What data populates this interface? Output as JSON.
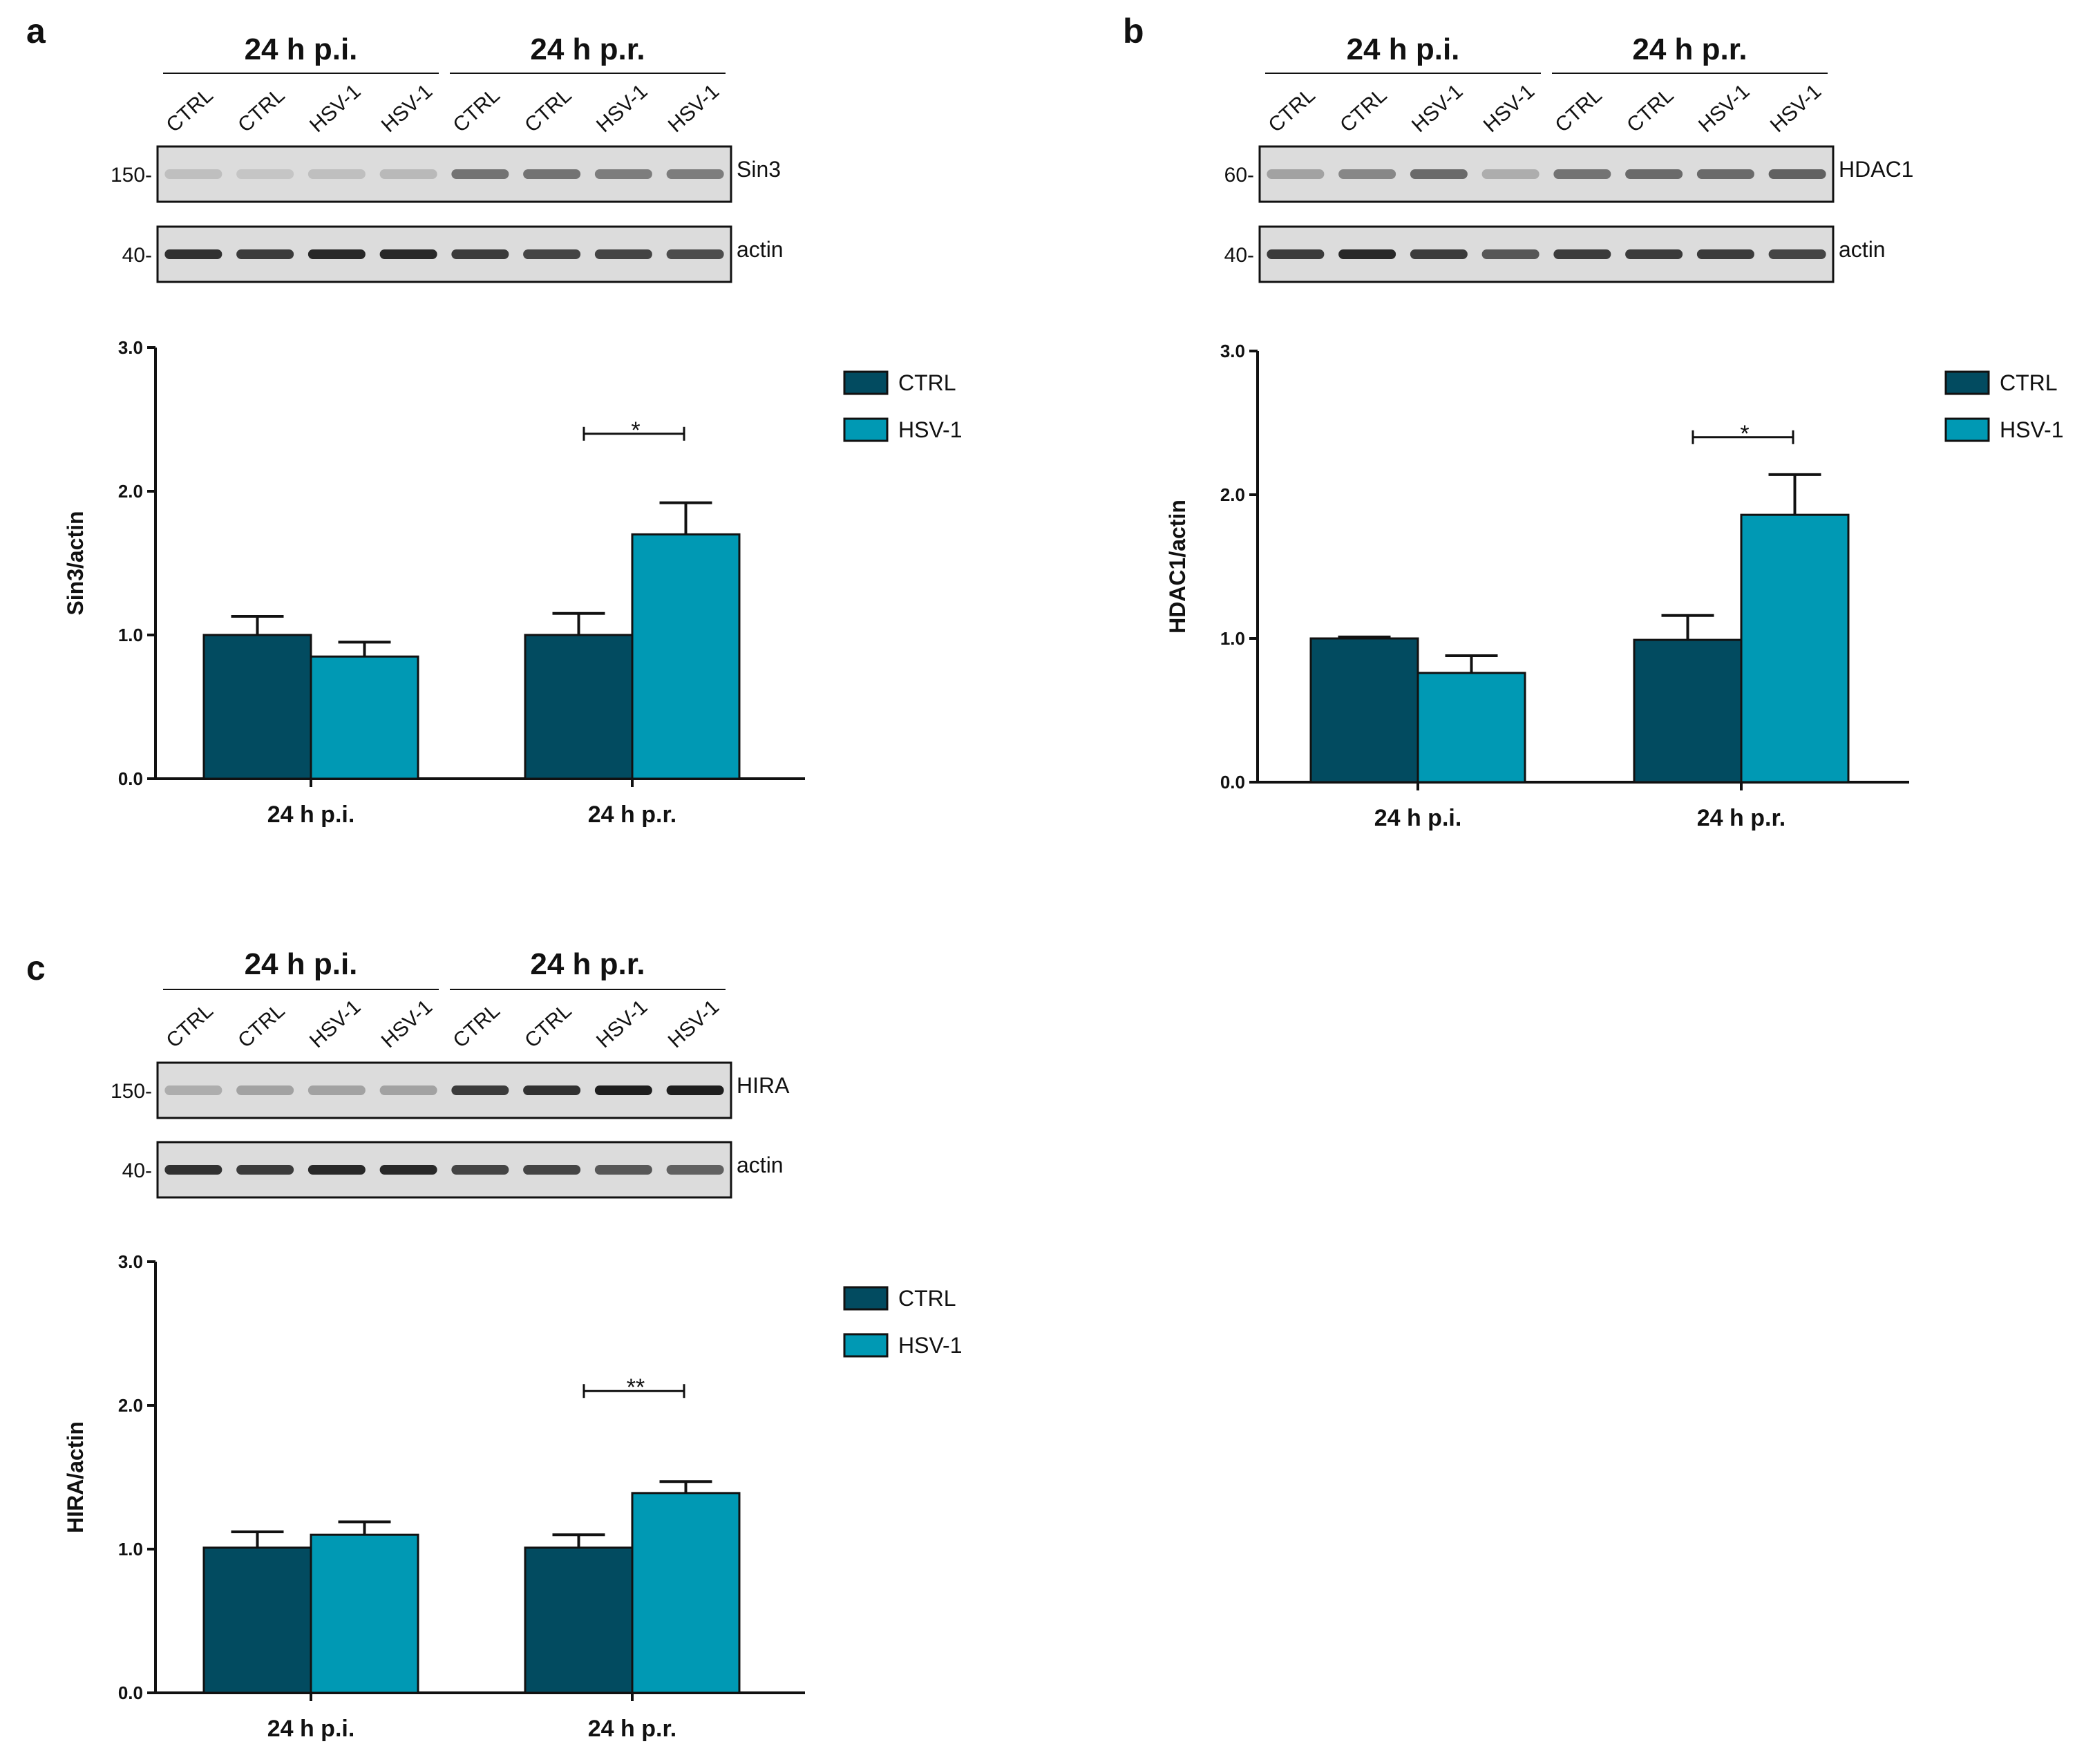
{
  "colors": {
    "ctrl": "#024B60",
    "hsv": "#0099B4",
    "blot_bg": "#dcdcdc",
    "band": "#1e1e1e"
  },
  "panels": [
    {
      "letter": "a",
      "groups": [
        "24 h p.i.",
        "24 h p.r."
      ],
      "lanes": [
        "CTRL",
        "CTRL",
        "HSV-1",
        "HSV-1",
        "CTRL",
        "CTRL",
        "HSV-1",
        "HSV-1"
      ],
      "blots": [
        {
          "protein": "Sin3",
          "mw": "150-",
          "intensities": [
            0.15,
            0.12,
            0.15,
            0.18,
            0.55,
            0.55,
            0.5,
            0.5
          ]
        },
        {
          "protein": "actin",
          "mw": "40-",
          "intensities": [
            0.9,
            0.85,
            0.95,
            0.95,
            0.85,
            0.8,
            0.8,
            0.75
          ]
        }
      ]
    },
    {
      "letter": "b",
      "groups": [
        "24 h p.i.",
        "24 h p.r."
      ],
      "lanes": [
        "CTRL",
        "CTRL",
        "HSV-1",
        "HSV-1",
        "CTRL",
        "CTRL",
        "HSV-1",
        "HSV-1"
      ],
      "blots": [
        {
          "protein": "HDAC1",
          "mw": "60-",
          "intensities": [
            0.3,
            0.45,
            0.6,
            0.25,
            0.55,
            0.6,
            0.6,
            0.65
          ]
        },
        {
          "protein": "actin",
          "mw": "40-",
          "intensities": [
            0.85,
            0.95,
            0.85,
            0.7,
            0.85,
            0.85,
            0.85,
            0.8
          ]
        }
      ]
    },
    {
      "letter": "c",
      "groups": [
        "24 h p.i.",
        "24 h p.r."
      ],
      "lanes": [
        "CTRL",
        "CTRL",
        "HSV-1",
        "HSV-1",
        "CTRL",
        "CTRL",
        "HSV-1",
        "HSV-1"
      ],
      "blots": [
        {
          "protein": "HIRA",
          "mw": "150-",
          "intensities": [
            0.25,
            0.3,
            0.3,
            0.3,
            0.85,
            0.9,
            1.0,
            1.0
          ]
        },
        {
          "protein": "actin",
          "mw": "40-",
          "intensities": [
            0.9,
            0.85,
            0.95,
            0.95,
            0.8,
            0.8,
            0.7,
            0.65
          ]
        }
      ]
    }
  ],
  "chart_data": [
    {
      "type": "bar",
      "panel": "a",
      "categories": [
        "24 h p.i.",
        "24 h p.r."
      ],
      "series": [
        {
          "name": "CTRL",
          "values": [
            1.0,
            1.0
          ],
          "errors": [
            0.13,
            0.15
          ]
        },
        {
          "name": "HSV-1",
          "values": [
            0.85,
            1.7
          ],
          "errors": [
            0.1,
            0.22
          ]
        }
      ],
      "ylabel": "Sin3/actin",
      "xlabel": "",
      "ylim": [
        0,
        3.0
      ],
      "yticks": [
        "0.0",
        "1.0",
        "2.0",
        "3.0"
      ],
      "significance": {
        "category": "24 h p.r.",
        "label": "*",
        "level": 2.4
      },
      "legend": [
        "CTRL",
        "HSV-1"
      ],
      "legend_position": "top-right"
    },
    {
      "type": "bar",
      "panel": "b",
      "categories": [
        "24 h p.i.",
        "24 h p.r."
      ],
      "series": [
        {
          "name": "CTRL",
          "values": [
            1.0,
            0.99
          ],
          "errors": [
            0.01,
            0.17
          ]
        },
        {
          "name": "HSV-1",
          "values": [
            0.76,
            1.86
          ],
          "errors": [
            0.12,
            0.28
          ]
        }
      ],
      "ylabel": "HDAC1/actin",
      "xlabel": "",
      "ylim": [
        0,
        3.0
      ],
      "yticks": [
        "0.0",
        "1.0",
        "2.0",
        "3.0"
      ],
      "significance": {
        "category": "24 h p.r.",
        "label": "*",
        "level": 2.4
      },
      "legend": [
        "CTRL",
        "HSV-1"
      ],
      "legend_position": "top-right"
    },
    {
      "type": "bar",
      "panel": "c",
      "categories": [
        "24 h p.i.",
        "24 h p.r."
      ],
      "series": [
        {
          "name": "CTRL",
          "values": [
            1.01,
            1.01
          ],
          "errors": [
            0.11,
            0.09
          ]
        },
        {
          "name": "HSV-1",
          "values": [
            1.1,
            1.39
          ],
          "errors": [
            0.09,
            0.08
          ]
        }
      ],
      "ylabel": "HIRA/actin",
      "xlabel": "",
      "ylim": [
        0,
        3.0
      ],
      "yticks": [
        "0.0",
        "1.0",
        "2.0",
        "3.0"
      ],
      "significance": {
        "category": "24 h p.r.",
        "label": "**",
        "level": 2.1
      },
      "legend": [
        "CTRL",
        "HSV-1"
      ],
      "legend_position": "top-right"
    }
  ]
}
